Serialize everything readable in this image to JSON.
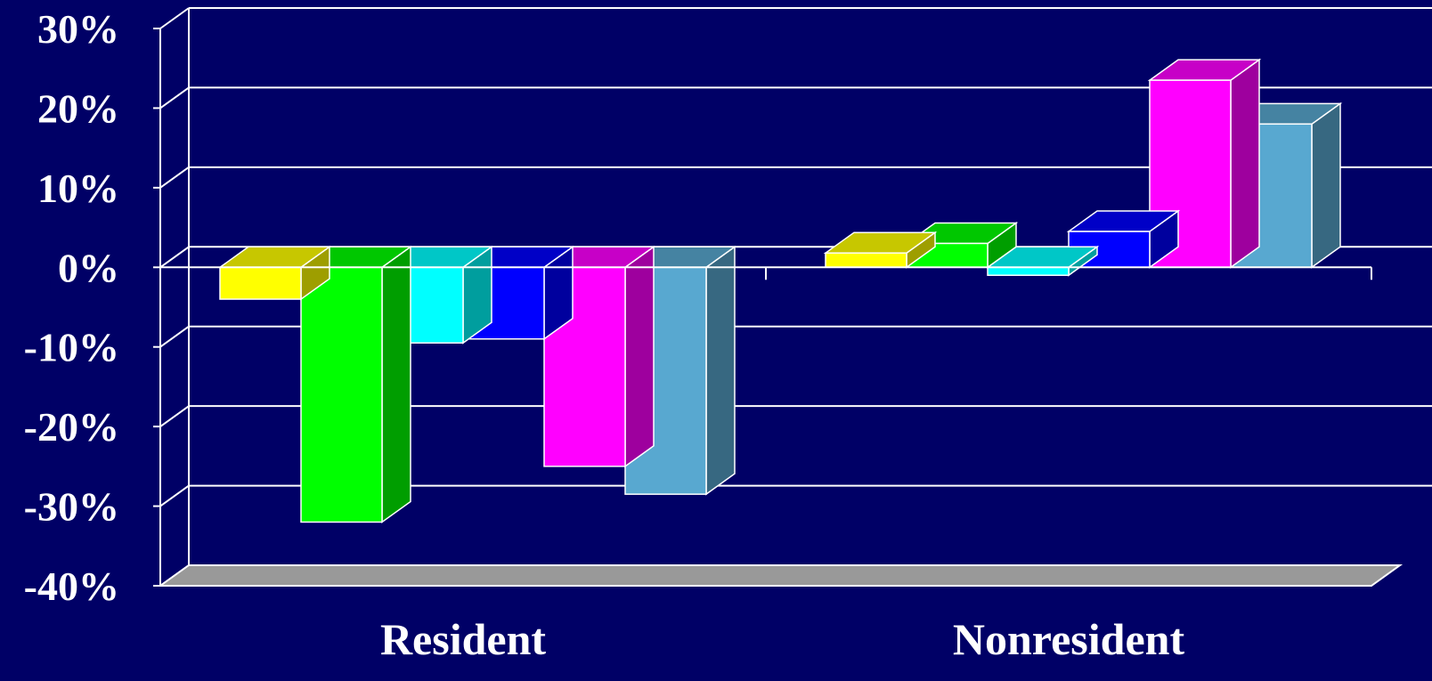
{
  "chart_data": {
    "type": "bar",
    "style": "3d-clustered-column",
    "background_color": "#000066",
    "gridline_color": "#ffffff",
    "floor_color": "#999999",
    "grid": true,
    "legend": "none",
    "categories": [
      "Resident",
      "Nonresident"
    ],
    "y_ticks": [
      "30%",
      "20%",
      "10%",
      "0%",
      "-10%",
      "-20%",
      "-30%",
      "-40%"
    ],
    "ylim": [
      -40,
      30
    ],
    "series": [
      {
        "color": "#ffff00",
        "values": [
          -4,
          1.8
        ]
      },
      {
        "color": "#00ff00",
        "values": [
          -32,
          3
        ]
      },
      {
        "color": "#00ffff",
        "values": [
          -9.5,
          -1
        ]
      },
      {
        "color": "#0000ff",
        "values": [
          -9,
          4.5
        ]
      },
      {
        "color": "#ff00ff",
        "values": [
          -25,
          23.5
        ]
      },
      {
        "color": "#58a8d0",
        "values": [
          -28.5,
          18
        ]
      }
    ]
  }
}
